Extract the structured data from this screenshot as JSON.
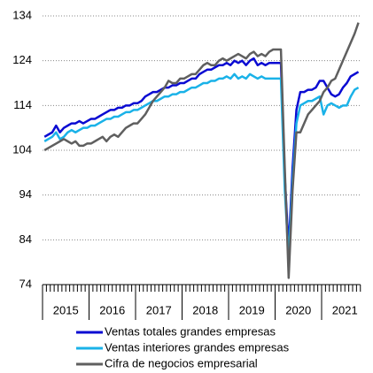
{
  "chart_data": {
    "type": "line",
    "categories": [
      null,
      null,
      null,
      null,
      null,
      null,
      null,
      null,
      null,
      null,
      null,
      null,
      null,
      null,
      null,
      null,
      null,
      null,
      null,
      null,
      null,
      null,
      null,
      null,
      null,
      null,
      null,
      null,
      null,
      null,
      null,
      null,
      null,
      null,
      null,
      null,
      null,
      null,
      null,
      null,
      null,
      null,
      null,
      null,
      null,
      null,
      null,
      null,
      null,
      null,
      null,
      null,
      null,
      null,
      null,
      null,
      null,
      null,
      null,
      null,
      null,
      null,
      null,
      null,
      null,
      null,
      null,
      null,
      null,
      null,
      null,
      null,
      null,
      null,
      null,
      null,
      null,
      null,
      null,
      null,
      null,
      null
    ],
    "year_groups": [
      "2015",
      "2016",
      "2017",
      "2018",
      "2019",
      "2020",
      "2021"
    ],
    "series": [
      {
        "name": "Ventas totales grandes empresas",
        "color": "#0a0ad2",
        "values": [
          107,
          107.5,
          108,
          109.5,
          108,
          109,
          109.5,
          110,
          110,
          110.5,
          110,
          110.5,
          111,
          111,
          111.5,
          112,
          112.5,
          113,
          113,
          113.5,
          113.5,
          114,
          114,
          114.5,
          114.5,
          115,
          116,
          116.5,
          117,
          117,
          117.5,
          118,
          118,
          118.5,
          118.5,
          119,
          119,
          119.5,
          120,
          120,
          121,
          121.5,
          122,
          122,
          122.5,
          123,
          123,
          123.5,
          123,
          124,
          123.5,
          124,
          123,
          124,
          124.5,
          123,
          123.5,
          123,
          123.5,
          123.5,
          123.5,
          123.5,
          98,
          82,
          100,
          113,
          117,
          117,
          117.5,
          117.5,
          118,
          119.5,
          119.5,
          118,
          116.5,
          116,
          116.5,
          118,
          119,
          120.5,
          121,
          121.5
        ]
      },
      {
        "name": "Ventas interiores grandes empresas",
        "color": "#1ab2e8",
        "values": [
          106,
          106.5,
          107,
          108,
          106.5,
          107,
          108,
          108.5,
          108,
          108.5,
          109,
          109,
          109.5,
          109.5,
          110,
          110.5,
          111,
          111,
          111.5,
          111.5,
          112,
          112.5,
          112.5,
          113,
          113,
          113.5,
          114,
          114.5,
          115,
          115,
          115.5,
          116,
          116,
          116.5,
          116.5,
          117,
          117,
          117.5,
          118,
          118,
          118.5,
          119,
          119,
          119.5,
          119.5,
          120,
          120,
          120.5,
          120,
          121,
          120,
          120.5,
          120,
          121,
          120.5,
          120,
          120.5,
          120,
          120,
          120,
          120,
          120,
          95,
          80,
          97,
          110,
          114,
          114.5,
          115,
          115,
          115.5,
          116,
          112,
          114,
          114.5,
          114,
          113.5,
          114,
          114,
          116,
          117.5,
          118
        ]
      },
      {
        "name": "Cifra de negocios empresarial",
        "color": "#5f5f5f",
        "values": [
          104,
          104.5,
          105,
          105.5,
          106,
          106.5,
          106,
          105.5,
          106,
          105,
          105,
          105.5,
          105.5,
          106,
          106.5,
          107,
          106,
          107,
          107.5,
          107,
          108,
          109,
          109.5,
          110,
          110,
          111,
          112,
          113.5,
          115,
          116,
          117,
          118,
          119.5,
          119,
          119,
          120,
          120,
          120.5,
          121,
          121,
          122,
          123,
          123.5,
          123,
          123,
          124,
          124.5,
          124,
          124.5,
          125,
          125.5,
          125,
          124.5,
          125.5,
          126,
          125,
          125.5,
          125,
          126,
          126.5,
          126.5,
          126.5,
          100,
          75.5,
          95,
          108,
          108,
          110,
          112,
          113,
          114,
          115,
          117,
          118,
          119.5,
          120,
          122,
          124,
          126,
          128,
          130,
          132.5
        ]
      }
    ],
    "ylim": [
      74,
      134
    ],
    "yticks": [
      74,
      84,
      94,
      104,
      114,
      124,
      134
    ],
    "grid": true
  }
}
